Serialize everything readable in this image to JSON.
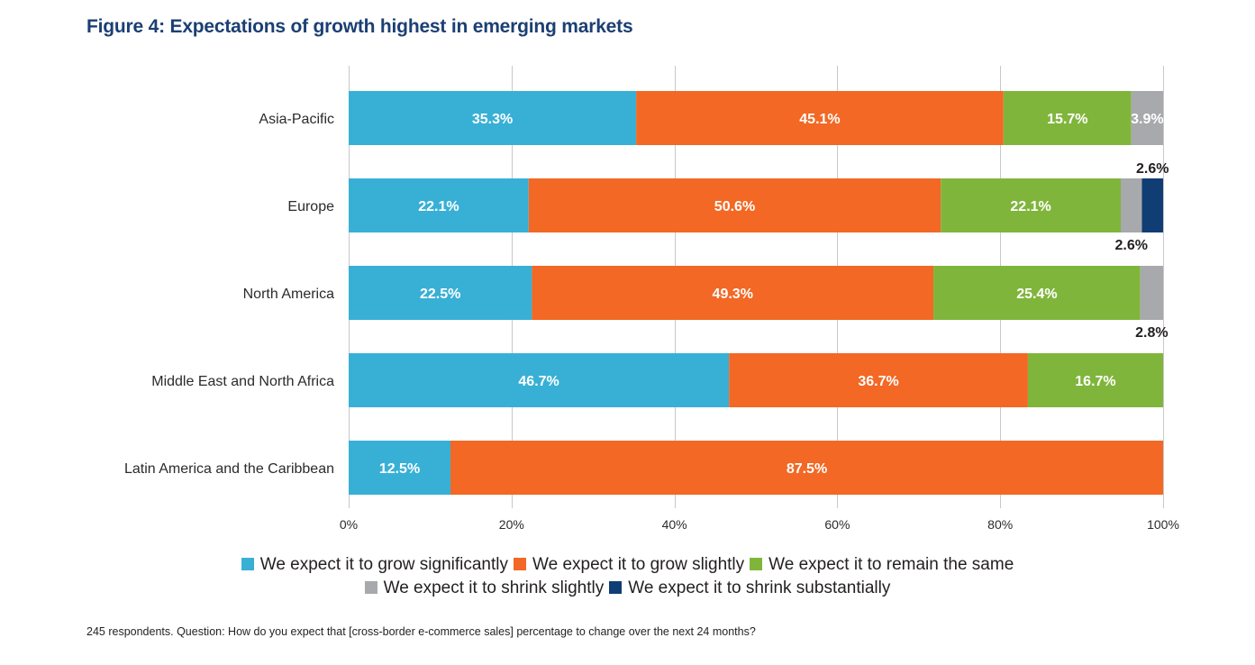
{
  "chart_data": {
    "type": "bar",
    "orientation": "horizontal",
    "stacked": true,
    "title": "Figure 4: Expectations of growth highest in emerging markets",
    "xlabel": "",
    "ylabel": "",
    "xlim": [
      0,
      100
    ],
    "x_ticks": [
      "0%",
      "20%",
      "40%",
      "60%",
      "80%",
      "100%"
    ],
    "x_tick_values": [
      0,
      20,
      40,
      60,
      80,
      100
    ],
    "grid": true,
    "legend_position": "bottom",
    "categories": [
      "Asia-Pacific",
      "Europe",
      "North America",
      "Middle East and North Africa",
      "Latin America and the Caribbean"
    ],
    "series": [
      {
        "name": "We expect it to grow significantly",
        "color": "#38b0d6",
        "values": [
          35.3,
          22.1,
          22.5,
          46.7,
          12.5
        ],
        "labels": [
          "35.3%",
          "22.1%",
          "22.5%",
          "46.7%",
          "12.5%"
        ]
      },
      {
        "name": "We expect it to grow slightly",
        "color": "#f26824",
        "values": [
          45.1,
          50.6,
          49.3,
          36.7,
          87.5
        ],
        "labels": [
          "45.1%",
          "50.6%",
          "49.3%",
          "36.7%",
          "87.5%"
        ]
      },
      {
        "name": "We expect it to remain the same",
        "color": "#80b53c",
        "values": [
          15.7,
          22.1,
          25.4,
          16.7,
          0
        ],
        "labels": [
          "15.7%",
          "22.1%",
          "25.4%",
          "16.7%",
          ""
        ]
      },
      {
        "name": "We expect it to shrink slightly",
        "color": "#a7a9ac",
        "values": [
          3.9,
          2.6,
          2.8,
          0,
          0
        ],
        "labels": [
          "3.9%",
          "2.6%",
          "2.8%",
          "",
          ""
        ]
      },
      {
        "name": "We expect it to shrink substantially",
        "color": "#103d73",
        "values": [
          0,
          2.6,
          0,
          0,
          0
        ],
        "labels": [
          "",
          "2.6%",
          "",
          "",
          ""
        ]
      }
    ],
    "outside_labels": [
      {
        "category": 1,
        "series": 4,
        "text": "2.6%",
        "position": "above"
      },
      {
        "category": 1,
        "series": 3,
        "text": "2.6%",
        "position": "below"
      },
      {
        "category": 2,
        "series": 3,
        "text": "2.8%",
        "position": "below"
      }
    ]
  },
  "footnote": "245 respondents. Question: How do you expect that [cross-border e-commerce sales] percentage to change over the next 24 months?"
}
